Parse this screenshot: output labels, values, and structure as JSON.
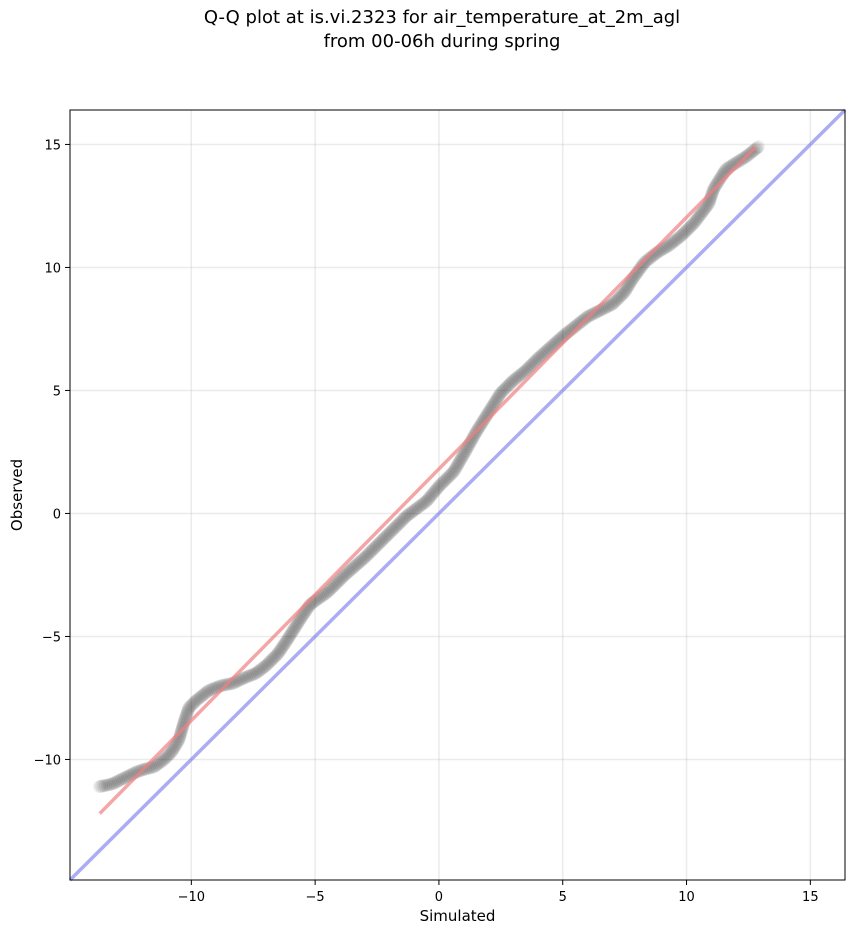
{
  "chart_data": {
    "type": "scatter",
    "title": "Q-Q plot at is.vi.2323 for air_temperature_at_2m_agl",
    "subtitle": "from 00-06h during spring",
    "xlabel": "Simulated",
    "ylabel": "Observed",
    "xlim": [
      -14.9,
      16.4
    ],
    "ylim": [
      -14.9,
      16.4
    ],
    "xticks": [
      -10,
      -5,
      0,
      5,
      10,
      15
    ],
    "yticks": [
      -10,
      -5,
      0,
      5,
      10,
      15
    ],
    "xtick_labels": [
      "−10",
      "−5",
      "0",
      "5",
      "10",
      "15"
    ],
    "ytick_labels": [
      "−10",
      "−5",
      "0",
      "5",
      "10",
      "15"
    ],
    "grid": true,
    "colors": {
      "points": "#000000",
      "fit_line": "#f08080",
      "identity_line": "#8080f0"
    },
    "quantile_anchors": {
      "x": [
        -13.7,
        -13.2,
        -12.6,
        -12.2,
        -11.9,
        -11.5,
        -11.1,
        -10.8,
        -10.5,
        -10.3,
        -10.1,
        -9.8,
        -9.3,
        -8.8,
        -8.3,
        -7.9,
        -7.4,
        -7.0,
        -6.5,
        -6.1,
        -5.6,
        -5.2,
        -4.5,
        -3.8,
        -3.0,
        -2.0,
        -1.3,
        -0.5,
        0.0,
        0.6,
        1.0,
        1.5,
        2.0,
        2.5,
        3.0,
        3.5,
        4.0,
        5.0,
        6.0,
        7.0,
        7.5,
        7.8,
        8.3,
        8.8,
        9.3,
        9.8,
        10.3,
        10.9,
        11.1,
        11.6,
        12.4,
        12.9
      ],
      "y": [
        -11.1,
        -11.0,
        -10.7,
        -10.5,
        -10.4,
        -10.3,
        -10.0,
        -9.7,
        -9.2,
        -8.5,
        -7.9,
        -7.6,
        -7.2,
        -7.0,
        -6.9,
        -6.7,
        -6.5,
        -6.2,
        -5.7,
        -5.1,
        -4.3,
        -3.7,
        -3.2,
        -2.5,
        -1.8,
        -0.8,
        -0.1,
        0.5,
        1.1,
        1.7,
        2.4,
        3.3,
        4.1,
        4.9,
        5.4,
        5.8,
        6.3,
        7.2,
        8.0,
        8.5,
        9.0,
        9.5,
        10.2,
        10.6,
        10.9,
        11.3,
        11.8,
        12.6,
        13.2,
        14.0,
        14.5,
        14.9
      ],
      "n_interpolated_points": 480
    },
    "fit_line": {
      "x": [
        -13.7,
        12.8
      ],
      "y": [
        -12.2,
        14.9
      ]
    },
    "identity_line": {
      "x": [
        -14.9,
        16.4
      ],
      "y": [
        -14.9,
        16.4
      ]
    }
  }
}
